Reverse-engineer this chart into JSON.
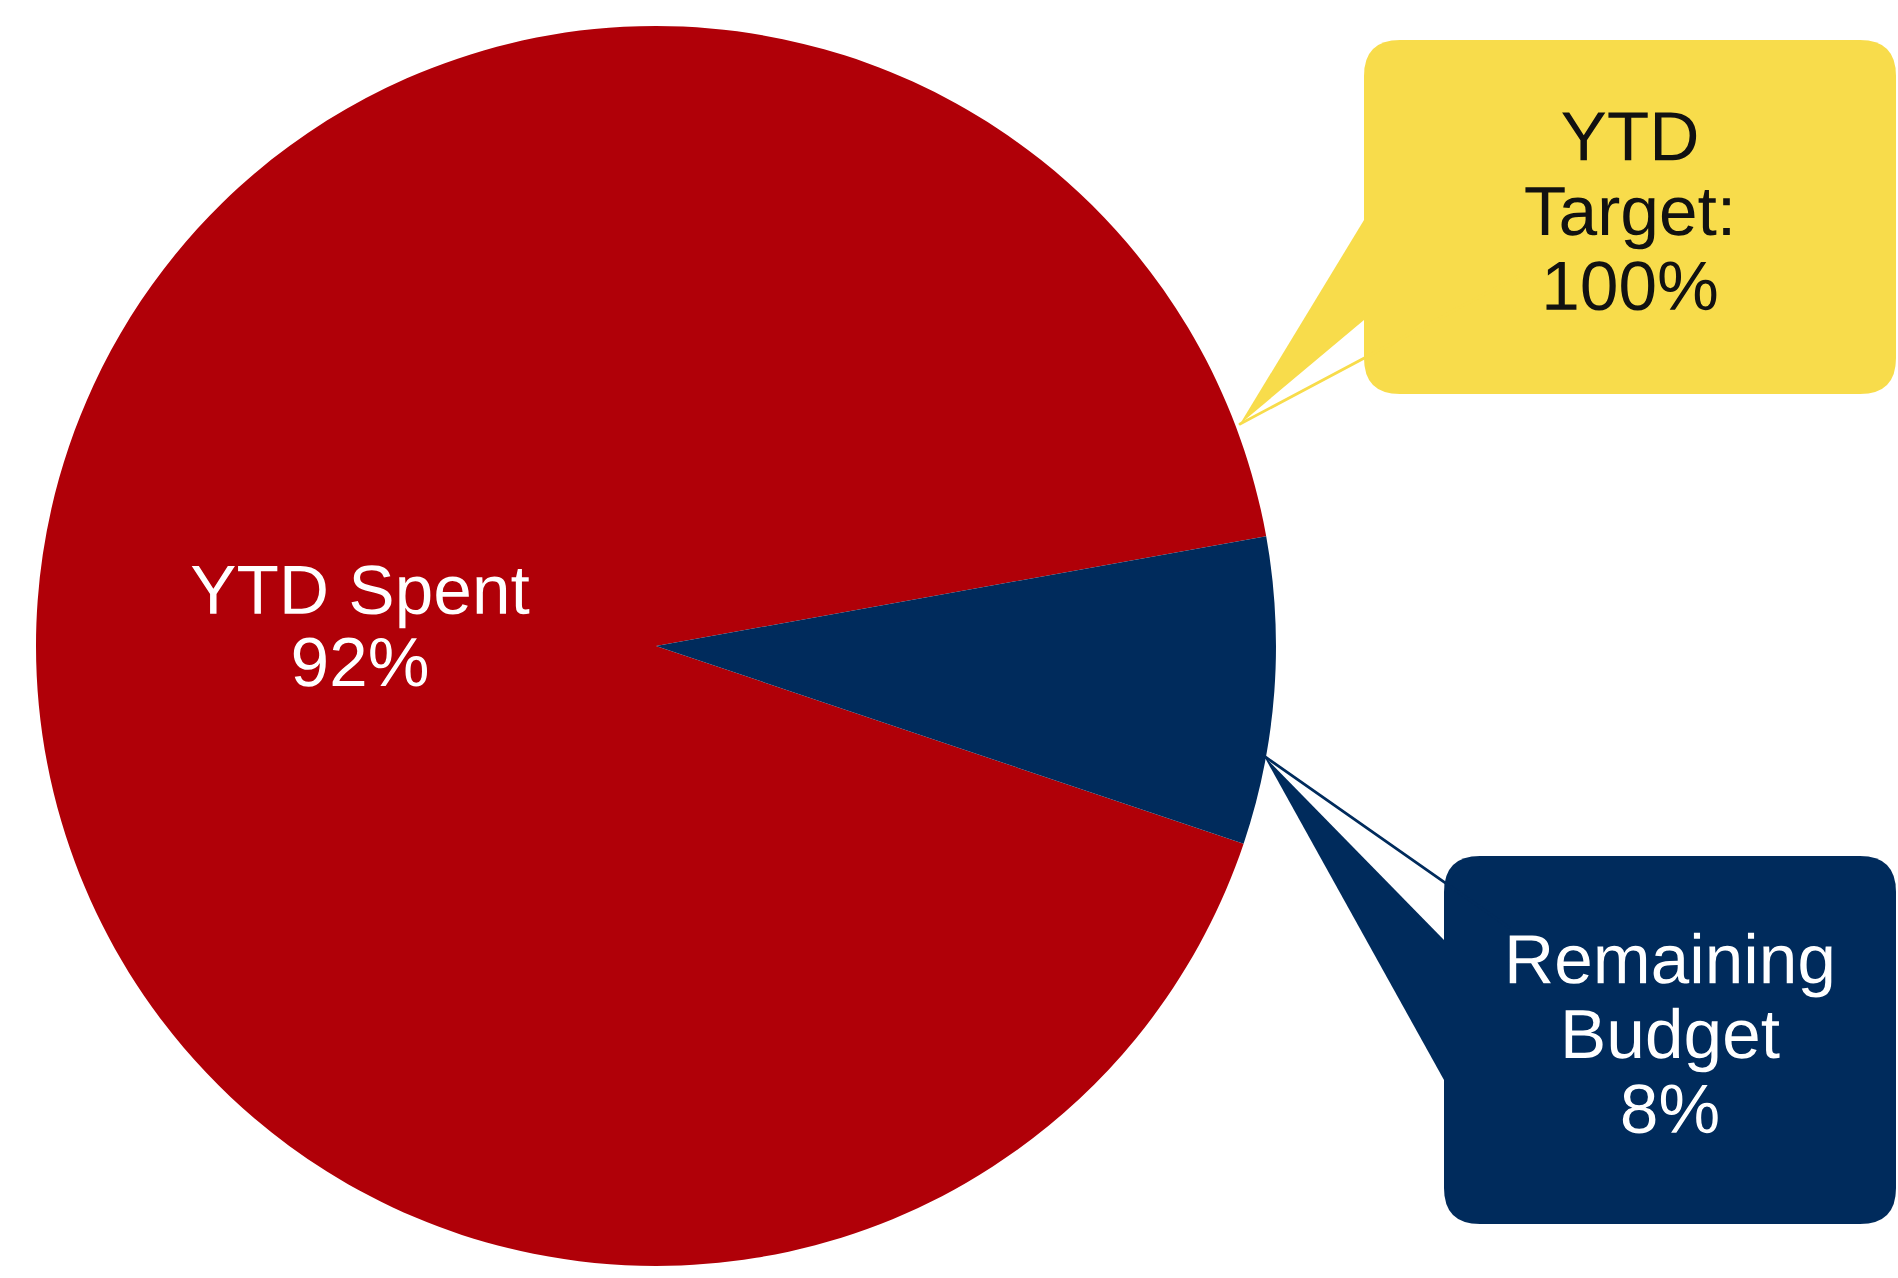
{
  "chart_data": {
    "type": "pie",
    "categories": [
      "YTD Spent",
      "Remaining Budget"
    ],
    "values": [
      92,
      8
    ],
    "colors": [
      "#b00008",
      "#002b5c"
    ],
    "value_labels": [
      "92%",
      "8%"
    ],
    "annotations": [
      "YTD Target: 100%"
    ]
  }
}
